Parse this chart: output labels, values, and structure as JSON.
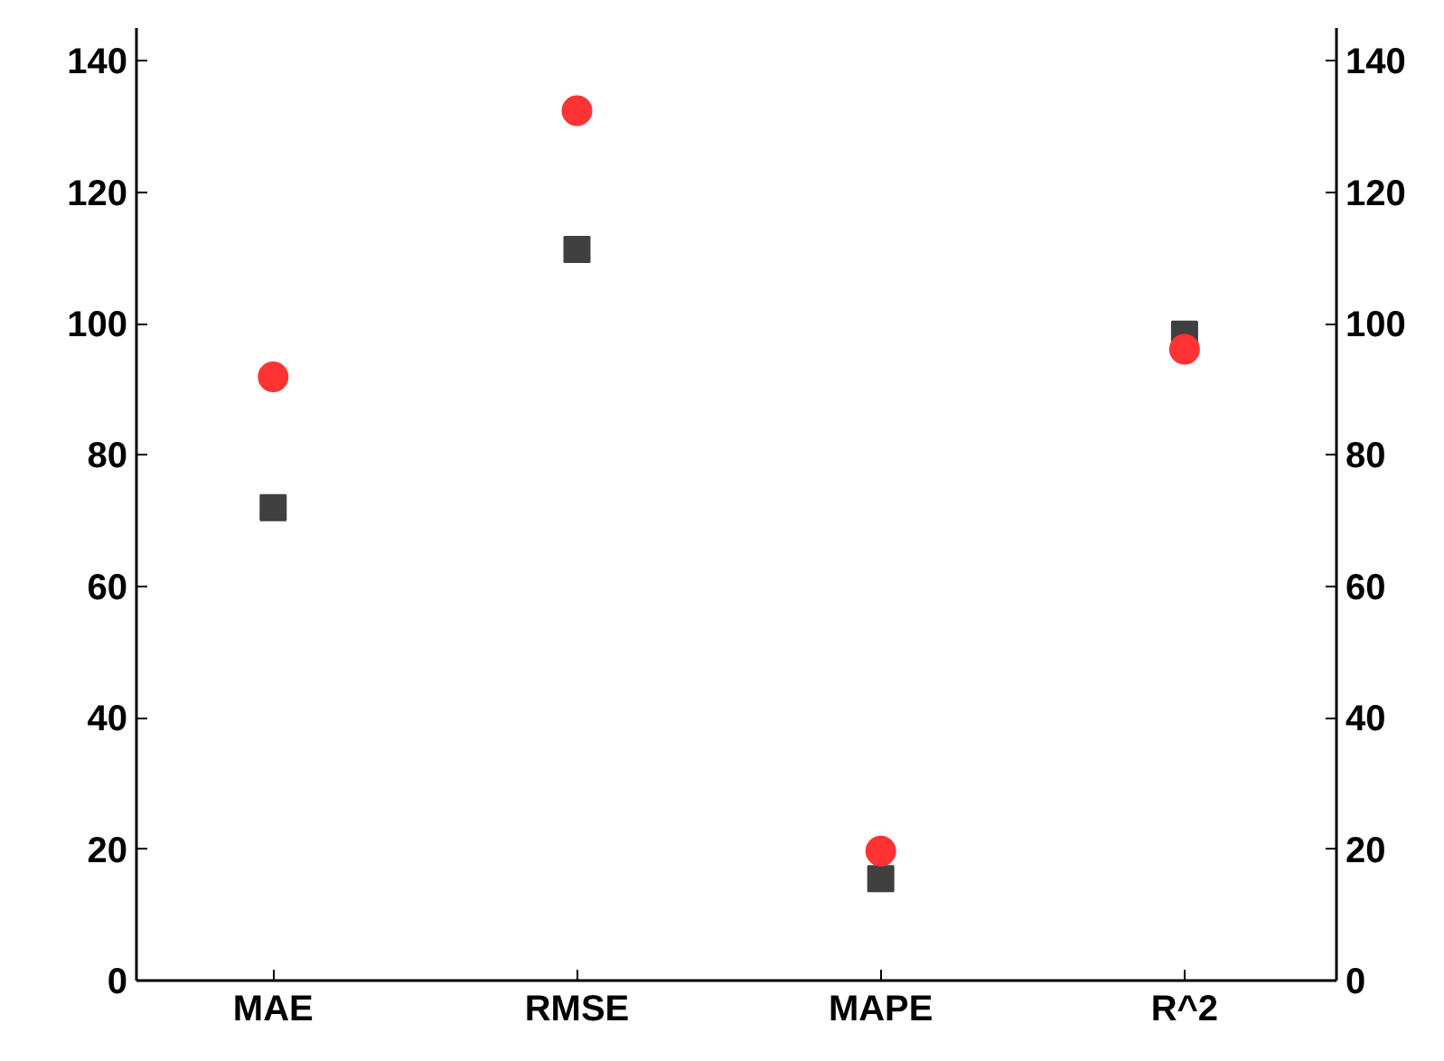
{
  "chart_data": {
    "type": "scatter",
    "categories": [
      "MAE",
      "RMSE",
      "MAPE",
      "R^2"
    ],
    "series": [
      {
        "color": "#404040",
        "marker": "square",
        "values": [
          72,
          111.3,
          15.5,
          98.4
        ]
      },
      {
        "color": "#ff3333",
        "marker": "circle",
        "values": [
          91.9,
          132.4,
          19.7,
          96.1
        ]
      }
    ],
    "ylim": [
      0,
      145
    ],
    "yticks": [
      0,
      20,
      40,
      60,
      80,
      100,
      120,
      140
    ],
    "y2lim": [
      0,
      145
    ],
    "y2ticks": [
      0,
      20,
      40,
      60,
      80,
      100,
      120,
      140
    ],
    "grid": false
  }
}
